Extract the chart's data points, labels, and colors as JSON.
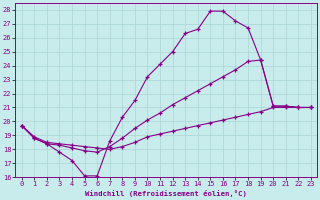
{
  "xlabel": "Windchill (Refroidissement éolien,°C)",
  "xlim": [
    -0.5,
    23.5
  ],
  "ylim": [
    16,
    28.5
  ],
  "xticks": [
    0,
    1,
    2,
    3,
    4,
    5,
    6,
    7,
    8,
    9,
    10,
    11,
    12,
    13,
    14,
    15,
    16,
    17,
    18,
    19,
    20,
    21,
    22,
    23
  ],
  "yticks": [
    16,
    17,
    18,
    19,
    20,
    21,
    22,
    23,
    24,
    25,
    26,
    27,
    28
  ],
  "bg_color": "#c8ecec",
  "line_color": "#880088",
  "grid_color": "#aad4d4",
  "curves": [
    {
      "x": [
        0,
        1,
        2,
        3,
        4,
        5,
        6,
        7,
        8,
        9,
        10,
        11,
        12,
        13,
        14,
        15,
        16,
        17,
        18,
        19,
        20,
        21,
        22,
        23
      ],
      "y": [
        19.7,
        18.8,
        18.4,
        17.8,
        17.2,
        16.1,
        16.1,
        18.6,
        20.3,
        21.5,
        23.2,
        24.1,
        25.0,
        26.3,
        26.6,
        27.9,
        27.9,
        27.2,
        26.7,
        24.4,
        21.1,
        21.1,
        21.0,
        21.0
      ]
    },
    {
      "x": [
        0,
        1,
        2,
        3,
        4,
        5,
        6,
        7,
        8,
        9,
        10,
        11,
        12,
        13,
        14,
        15,
        16,
        17,
        18,
        19,
        20,
        21,
        22,
        23
      ],
      "y": [
        19.7,
        18.8,
        18.4,
        18.3,
        18.1,
        17.9,
        17.8,
        18.2,
        18.8,
        19.5,
        20.1,
        20.6,
        21.2,
        21.7,
        22.2,
        22.7,
        23.2,
        23.7,
        24.3,
        24.4,
        21.1,
        21.1,
        21.0,
        21.0
      ]
    },
    {
      "x": [
        0,
        1,
        2,
        3,
        4,
        5,
        6,
        7,
        8,
        9,
        10,
        11,
        12,
        13,
        14,
        15,
        16,
        17,
        18,
        19,
        20,
        21,
        22,
        23
      ],
      "y": [
        19.7,
        18.9,
        18.5,
        18.4,
        18.3,
        18.2,
        18.1,
        18.0,
        18.2,
        18.5,
        18.9,
        19.1,
        19.3,
        19.5,
        19.7,
        19.9,
        20.1,
        20.3,
        20.5,
        20.7,
        21.0,
        21.0,
        21.0,
        21.0
      ]
    }
  ]
}
